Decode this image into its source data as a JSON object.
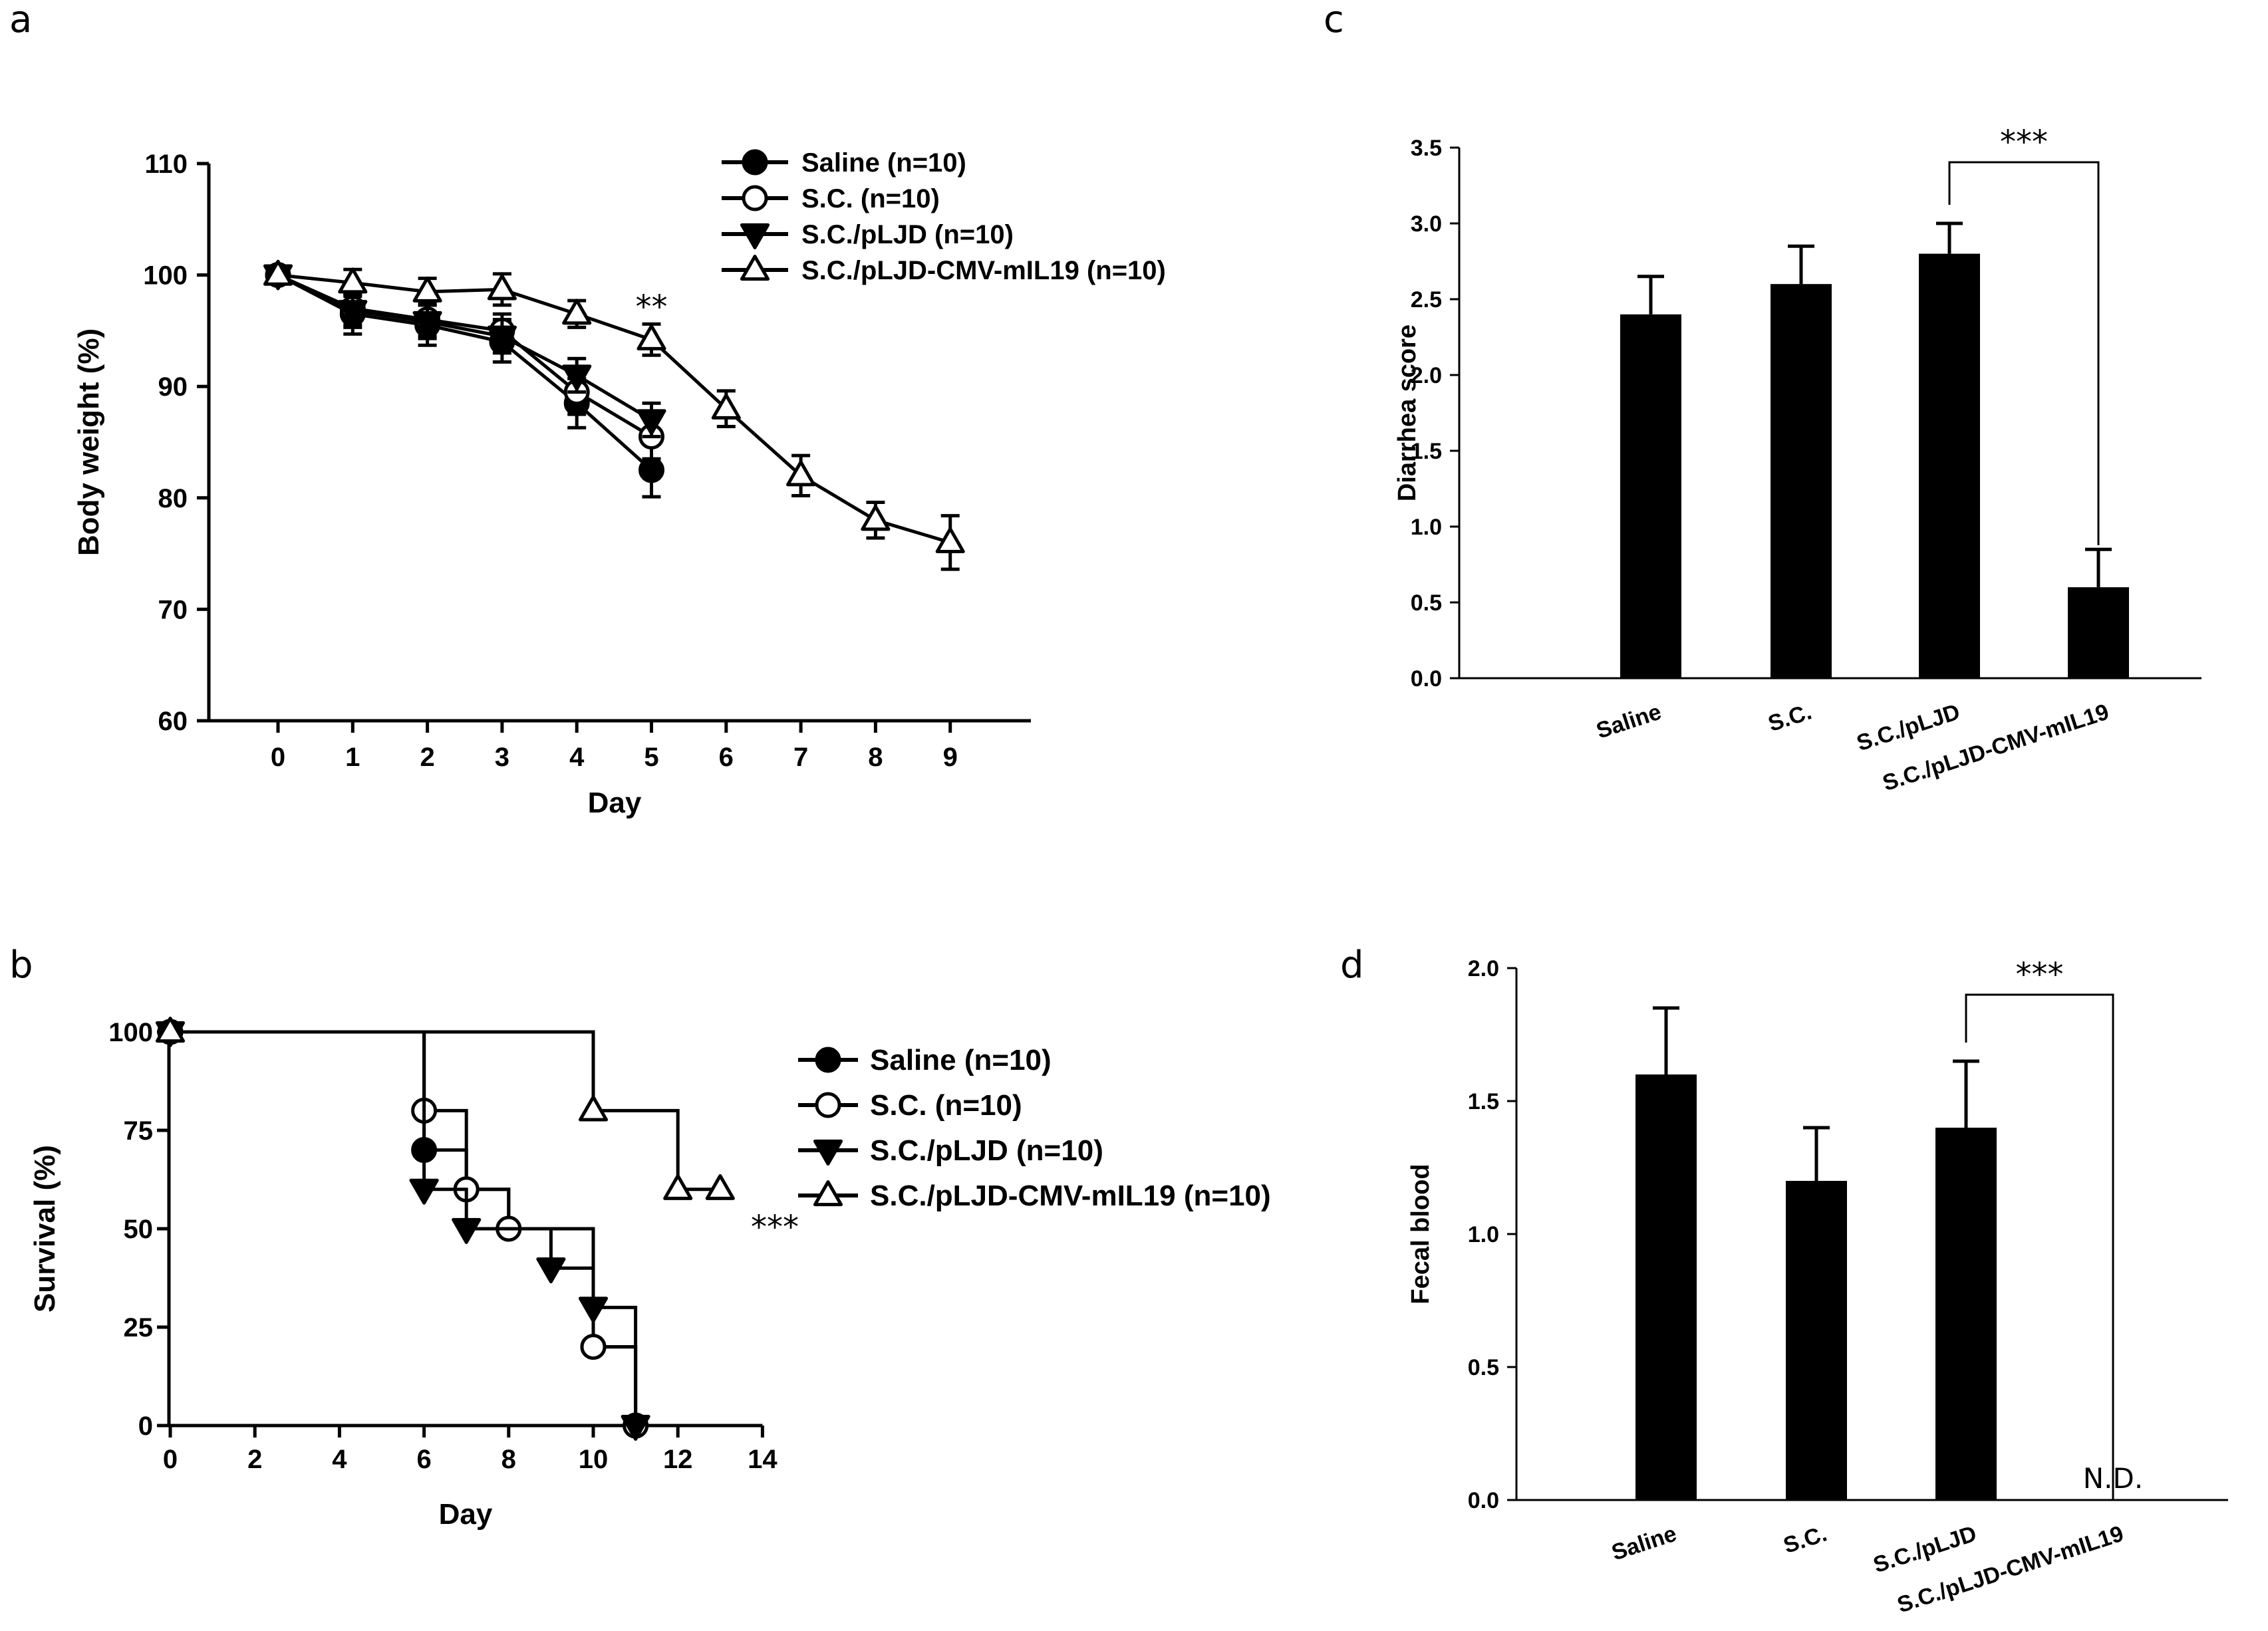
{
  "chart_data": [
    {
      "panel": "a",
      "type": "line",
      "xlabel": "Day",
      "ylabel": "Body weight (%)",
      "ylim": [
        60,
        110
      ],
      "yticks": [
        60,
        70,
        80,
        90,
        100,
        110
      ],
      "xticks": [
        0,
        1,
        2,
        3,
        4,
        5,
        6,
        7,
        8,
        9
      ],
      "legend_position": "top-right",
      "series": [
        {
          "name": "Saline (n=10)",
          "marker": "circle-filled",
          "x": [
            0,
            1,
            2,
            3,
            4,
            5
          ],
          "y": [
            100,
            96.5,
            95.5,
            94,
            88.5,
            82.5
          ],
          "err": [
            0.8,
            1.8,
            1.8,
            1.8,
            2.2,
            2.4
          ]
        },
        {
          "name": "S.C. (n=10)",
          "marker": "circle-open",
          "x": [
            0,
            1,
            2,
            3,
            4,
            5
          ],
          "y": [
            100,
            97,
            96,
            95,
            89.5,
            85.5
          ],
          "err": [
            0.8,
            1.5,
            1.5,
            1.5,
            2.0,
            2.0
          ]
        },
        {
          "name": "S.C./pLJD (n=10)",
          "marker": "triangle-down-filled",
          "x": [
            0,
            1,
            2,
            3,
            4,
            5
          ],
          "y": [
            100,
            96.8,
            95.8,
            94.5,
            91,
            87
          ],
          "err": [
            0.8,
            1.5,
            1.5,
            1.5,
            1.5,
            1.5
          ]
        },
        {
          "name": "S.C./pLJD-CMV-mIL19 (n=10)",
          "marker": "triangle-up-open",
          "x": [
            0,
            1,
            2,
            3,
            4,
            5,
            6,
            7,
            8,
            9
          ],
          "y": [
            100,
            99.3,
            98.5,
            98.7,
            96.5,
            94.2,
            88,
            82,
            78,
            76
          ],
          "err": [
            0.6,
            1.2,
            1.2,
            1.4,
            1.2,
            1.4,
            1.6,
            1.8,
            1.6,
            2.4
          ]
        }
      ],
      "annotation": {
        "text": "**",
        "x": 5
      }
    },
    {
      "panel": "b",
      "type": "line",
      "subtype": "kaplan-meier",
      "xlabel": "Day",
      "ylabel": "Survival (%)",
      "xlim": [
        0,
        14
      ],
      "ylim": [
        0,
        100
      ],
      "yticks": [
        0,
        25,
        50,
        75,
        100
      ],
      "xticks": [
        0,
        2,
        4,
        6,
        8,
        10,
        12,
        14
      ],
      "legend_position": "right",
      "series": [
        {
          "name": "Saline (n=10)",
          "marker": "circle-filled",
          "steps": [
            [
              0,
              100
            ],
            [
              6,
              70
            ],
            [
              7,
              60
            ],
            [
              8,
              50
            ],
            [
              10,
              20
            ],
            [
              11,
              0
            ]
          ]
        },
        {
          "name": "S.C. (n=10)",
          "marker": "circle-open",
          "steps": [
            [
              0,
              100
            ],
            [
              6,
              80
            ],
            [
              7,
              60
            ],
            [
              8,
              50
            ],
            [
              10,
              20
            ],
            [
              11,
              0
            ]
          ]
        },
        {
          "name": "S.C./pLJD (n=10)",
          "marker": "triangle-down-filled",
          "steps": [
            [
              0,
              100
            ],
            [
              6,
              60
            ],
            [
              7,
              50
            ],
            [
              9,
              40
            ],
            [
              10,
              30
            ],
            [
              11,
              0
            ]
          ]
        },
        {
          "name": "S.C./pLJD-CMV-mIL19 (n=10)",
          "marker": "triangle-up-open",
          "steps": [
            [
              0,
              100
            ],
            [
              10,
              80
            ],
            [
              12,
              60
            ],
            [
              13,
              60
            ]
          ]
        }
      ],
      "annotation": {
        "text": "***"
      }
    },
    {
      "panel": "c",
      "type": "bar",
      "ylabel": "Diarrhea score",
      "ylim": [
        0,
        3.5
      ],
      "yticks": [
        "0.0",
        "0.5",
        "1.0",
        "1.5",
        "2.0",
        "2.5",
        "3.0",
        "3.5"
      ],
      "categories": [
        "Saline",
        "S.C.",
        "S.C./pLJD",
        "S.C./pLJD-CMV-mIL19"
      ],
      "values": [
        2.4,
        2.6,
        2.8,
        0.6
      ],
      "err": [
        0.25,
        0.25,
        0.2,
        0.25
      ],
      "significance": {
        "text": "***",
        "between": [
          2,
          3
        ]
      }
    },
    {
      "panel": "d",
      "type": "bar",
      "ylabel": "Fecal blood",
      "ylim": [
        0,
        2.0
      ],
      "yticks": [
        "0.0",
        "0.5",
        "1.0",
        "1.5",
        "2.0"
      ],
      "categories": [
        "Saline",
        "S.C.",
        "S.C./pLJD",
        "S.C./pLJD-CMV-mIL19"
      ],
      "values": [
        1.6,
        1.2,
        1.4,
        0
      ],
      "err": [
        0.25,
        0.2,
        0.25,
        0
      ],
      "bar_labels": [
        "",
        "",
        "",
        "N.D."
      ],
      "significance": {
        "text": "***",
        "between": [
          2,
          3
        ]
      }
    }
  ]
}
